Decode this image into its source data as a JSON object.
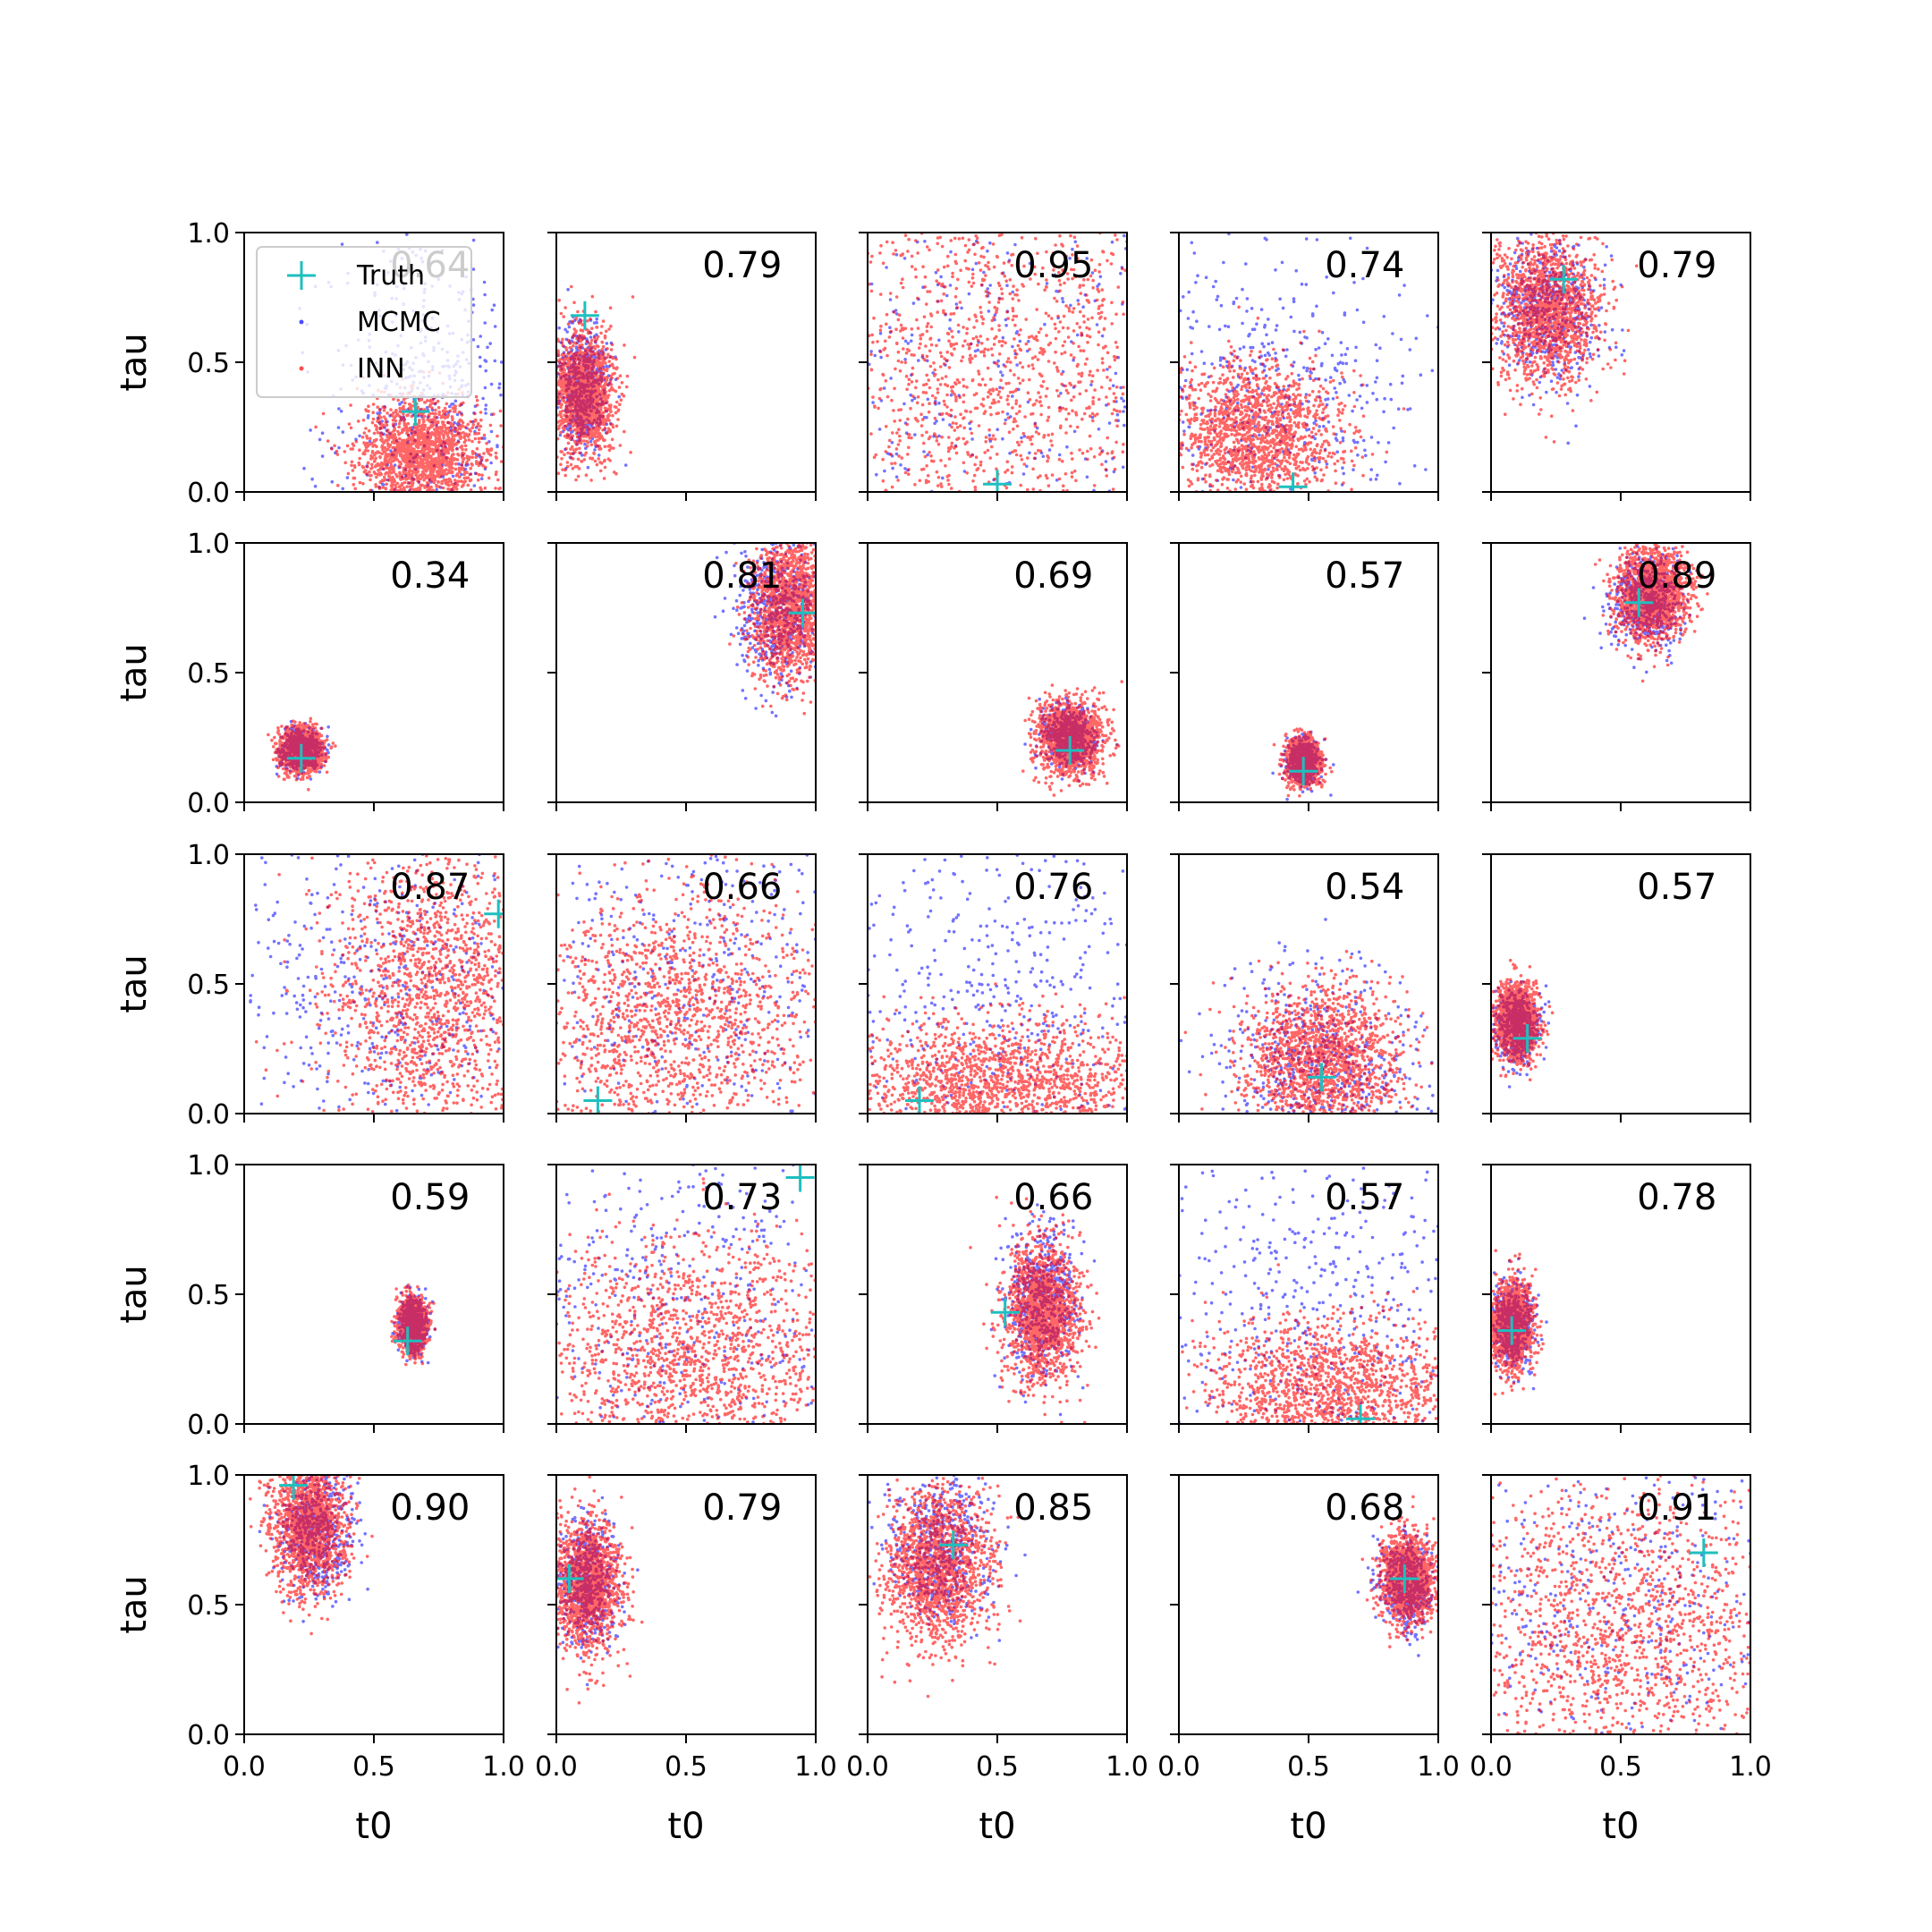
{
  "chart_data": {
    "type": "scatter",
    "layout": "5x5 grid of scatter panels",
    "xlabel": "t0",
    "ylabel": "tau",
    "xlim": [
      0,
      1
    ],
    "ylim": [
      0,
      1
    ],
    "x_tick_labels": [
      "0.0",
      "0.5",
      "1.0"
    ],
    "y_tick_labels": [
      "0.0",
      "0.5",
      "1.0"
    ],
    "grid": false,
    "legend": {
      "placement": "upper-left of first panel",
      "entries": [
        {
          "label": "Truth",
          "marker": "plus",
          "color": "#1fbfbf"
        },
        {
          "label": "MCMC",
          "marker": "dot",
          "color": "#0000ff"
        },
        {
          "label": "INN",
          "marker": "dot",
          "color": "#ff0000"
        }
      ]
    },
    "colors": {
      "truth": "#1fbfbf",
      "mcmc": "#0000ff",
      "inn": "#ff0000"
    },
    "panels": [
      {
        "annotation": "0.64",
        "truth": [
          0.66,
          0.31
        ],
        "inn": {
          "mx": 0.68,
          "my": 0.15,
          "sx": 0.12,
          "sy": 0.1
        },
        "mcmc": {
          "mx": 0.72,
          "my": 0.35,
          "sx": 0.2,
          "sy": 0.3
        }
      },
      {
        "annotation": "0.79",
        "truth": [
          0.11,
          0.68
        ],
        "inn": {
          "mx": 0.1,
          "my": 0.38,
          "sx": 0.06,
          "sy": 0.12
        },
        "mcmc": {
          "mx": 0.1,
          "my": 0.4,
          "sx": 0.05,
          "sy": 0.12
        }
      },
      {
        "annotation": "0.95",
        "truth": [
          0.5,
          0.03
        ],
        "inn": {
          "mx": 0.5,
          "my": 0.5,
          "sx": 0.4,
          "sy": 0.4
        },
        "mcmc": {
          "mx": 0.5,
          "my": 0.5,
          "sx": 0.5,
          "sy": 0.5
        }
      },
      {
        "annotation": "0.74",
        "truth": [
          0.44,
          0.02
        ],
        "inn": {
          "mx": 0.3,
          "my": 0.22,
          "sx": 0.17,
          "sy": 0.14
        },
        "mcmc": {
          "mx": 0.35,
          "my": 0.35,
          "sx": 0.3,
          "sy": 0.3
        }
      },
      {
        "annotation": "0.79",
        "truth": [
          0.28,
          0.82
        ],
        "inn": {
          "mx": 0.22,
          "my": 0.7,
          "sx": 0.1,
          "sy": 0.14
        },
        "mcmc": {
          "mx": 0.22,
          "my": 0.7,
          "sx": 0.1,
          "sy": 0.14
        }
      },
      {
        "annotation": "0.34",
        "truth": [
          0.22,
          0.17
        ],
        "inn": {
          "mx": 0.22,
          "my": 0.2,
          "sx": 0.04,
          "sy": 0.04
        },
        "mcmc": {
          "mx": 0.22,
          "my": 0.2,
          "sx": 0.04,
          "sy": 0.04
        }
      },
      {
        "annotation": "0.81",
        "truth": [
          0.95,
          0.73
        ],
        "inn": {
          "mx": 0.9,
          "my": 0.75,
          "sx": 0.08,
          "sy": 0.14
        },
        "mcmc": {
          "mx": 0.85,
          "my": 0.75,
          "sx": 0.08,
          "sy": 0.14
        }
      },
      {
        "annotation": "0.69",
        "truth": [
          0.78,
          0.2
        ],
        "inn": {
          "mx": 0.78,
          "my": 0.25,
          "sx": 0.06,
          "sy": 0.07
        },
        "mcmc": {
          "mx": 0.78,
          "my": 0.25,
          "sx": 0.05,
          "sy": 0.06
        }
      },
      {
        "annotation": "0.57",
        "truth": [
          0.48,
          0.12
        ],
        "inn": {
          "mx": 0.48,
          "my": 0.16,
          "sx": 0.03,
          "sy": 0.04
        },
        "mcmc": {
          "mx": 0.48,
          "my": 0.16,
          "sx": 0.03,
          "sy": 0.04
        }
      },
      {
        "annotation": "0.89",
        "truth": [
          0.57,
          0.77
        ],
        "inn": {
          "mx": 0.62,
          "my": 0.8,
          "sx": 0.07,
          "sy": 0.09
        },
        "mcmc": {
          "mx": 0.6,
          "my": 0.78,
          "sx": 0.07,
          "sy": 0.09
        }
      },
      {
        "annotation": "0.87",
        "truth": [
          0.98,
          0.77
        ],
        "inn": {
          "mx": 0.72,
          "my": 0.45,
          "sx": 0.2,
          "sy": 0.3
        },
        "mcmc": {
          "mx": 0.55,
          "my": 0.5,
          "sx": 0.35,
          "sy": 0.35
        }
      },
      {
        "annotation": "0.66",
        "truth": [
          0.16,
          0.05
        ],
        "inn": {
          "mx": 0.45,
          "my": 0.35,
          "sx": 0.3,
          "sy": 0.25
        },
        "mcmc": {
          "mx": 0.5,
          "my": 0.5,
          "sx": 0.4,
          "sy": 0.4
        }
      },
      {
        "annotation": "0.76",
        "truth": [
          0.2,
          0.05
        ],
        "inn": {
          "mx": 0.5,
          "my": 0.12,
          "sx": 0.3,
          "sy": 0.12
        },
        "mcmc": {
          "mx": 0.5,
          "my": 0.5,
          "sx": 0.4,
          "sy": 0.35
        }
      },
      {
        "annotation": "0.54",
        "truth": [
          0.55,
          0.14
        ],
        "inn": {
          "mx": 0.55,
          "my": 0.2,
          "sx": 0.15,
          "sy": 0.14
        },
        "mcmc": {
          "mx": 0.55,
          "my": 0.2,
          "sx": 0.18,
          "sy": 0.18
        }
      },
      {
        "annotation": "0.57",
        "truth": [
          0.14,
          0.29
        ],
        "inn": {
          "mx": 0.1,
          "my": 0.35,
          "sx": 0.04,
          "sy": 0.07
        },
        "mcmc": {
          "mx": 0.1,
          "my": 0.33,
          "sx": 0.04,
          "sy": 0.07
        }
      },
      {
        "annotation": "0.59",
        "truth": [
          0.63,
          0.32
        ],
        "inn": {
          "mx": 0.65,
          "my": 0.38,
          "sx": 0.025,
          "sy": 0.05
        },
        "mcmc": {
          "mx": 0.65,
          "my": 0.38,
          "sx": 0.025,
          "sy": 0.05
        }
      },
      {
        "annotation": "0.73",
        "truth": [
          0.94,
          0.95
        ],
        "inn": {
          "mx": 0.55,
          "my": 0.25,
          "sx": 0.3,
          "sy": 0.25
        },
        "mcmc": {
          "mx": 0.5,
          "my": 0.5,
          "sx": 0.4,
          "sy": 0.4
        }
      },
      {
        "annotation": "0.66",
        "truth": [
          0.53,
          0.43
        ],
        "inn": {
          "mx": 0.67,
          "my": 0.43,
          "sx": 0.07,
          "sy": 0.13
        },
        "mcmc": {
          "mx": 0.67,
          "my": 0.48,
          "sx": 0.07,
          "sy": 0.14
        }
      },
      {
        "annotation": "0.57",
        "truth": [
          0.7,
          0.02
        ],
        "inn": {
          "mx": 0.6,
          "my": 0.12,
          "sx": 0.25,
          "sy": 0.14
        },
        "mcmc": {
          "mx": 0.5,
          "my": 0.45,
          "sx": 0.35,
          "sy": 0.35
        }
      },
      {
        "annotation": "0.78",
        "truth": [
          0.08,
          0.36
        ],
        "inn": {
          "mx": 0.08,
          "my": 0.38,
          "sx": 0.04,
          "sy": 0.08
        },
        "mcmc": {
          "mx": 0.08,
          "my": 0.38,
          "sx": 0.04,
          "sy": 0.08
        }
      },
      {
        "annotation": "0.90",
        "truth": [
          0.19,
          0.96
        ],
        "inn": {
          "mx": 0.25,
          "my": 0.8,
          "sx": 0.07,
          "sy": 0.12
        },
        "mcmc": {
          "mx": 0.27,
          "my": 0.78,
          "sx": 0.07,
          "sy": 0.12
        }
      },
      {
        "annotation": "0.79",
        "truth": [
          0.05,
          0.6
        ],
        "inn": {
          "mx": 0.12,
          "my": 0.58,
          "sx": 0.06,
          "sy": 0.12
        },
        "mcmc": {
          "mx": 0.12,
          "my": 0.58,
          "sx": 0.06,
          "sy": 0.12
        }
      },
      {
        "annotation": "0.85",
        "truth": [
          0.33,
          0.73
        ],
        "inn": {
          "mx": 0.27,
          "my": 0.65,
          "sx": 0.1,
          "sy": 0.15
        },
        "mcmc": {
          "mx": 0.28,
          "my": 0.72,
          "sx": 0.1,
          "sy": 0.15
        }
      },
      {
        "annotation": "0.68",
        "truth": [
          0.87,
          0.6
        ],
        "inn": {
          "mx": 0.88,
          "my": 0.6,
          "sx": 0.05,
          "sy": 0.08
        },
        "mcmc": {
          "mx": 0.88,
          "my": 0.58,
          "sx": 0.05,
          "sy": 0.08
        }
      },
      {
        "annotation": "0.91",
        "truth": [
          0.82,
          0.7
        ],
        "inn": {
          "mx": 0.5,
          "my": 0.4,
          "sx": 0.35,
          "sy": 0.3
        },
        "mcmc": {
          "mx": 0.5,
          "my": 0.5,
          "sx": 0.4,
          "sy": 0.4
        }
      }
    ]
  }
}
